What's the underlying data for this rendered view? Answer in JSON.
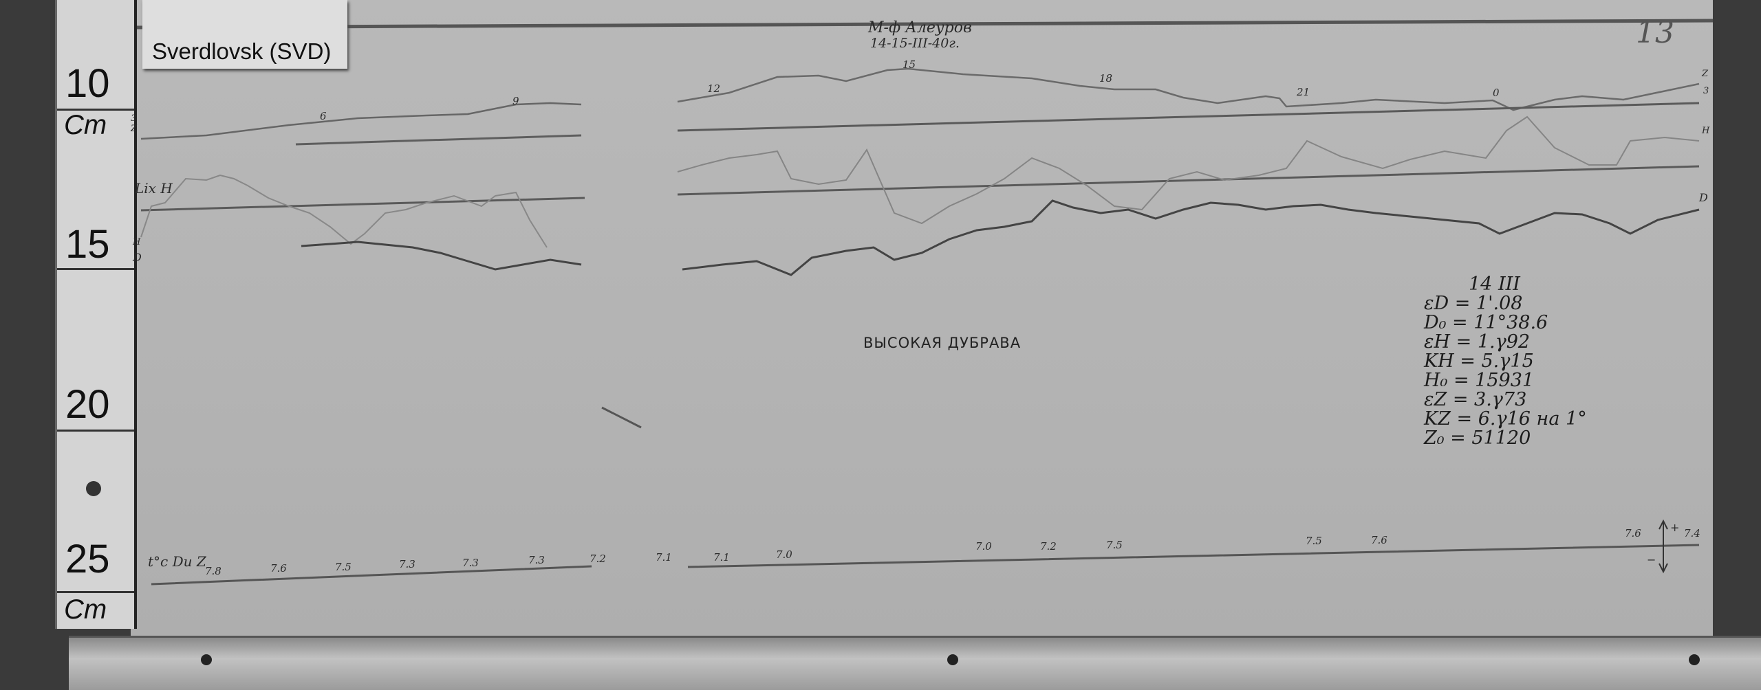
{
  "station_label": "Sverdlovsk (SVD)",
  "ruler": {
    "marks": [
      "10",
      "15",
      "20",
      "25"
    ],
    "unit_top": "Cm",
    "unit_bottom": "Cm"
  },
  "header": {
    "observer": "М-ф Алеуров",
    "date": "14-15-III-40г.",
    "sheet_number": "13"
  },
  "station_name": "ВЫСОКАЯ ДУБРАВА",
  "trace_labels": {
    "z": "Z",
    "z_base": "3",
    "h_left": "Lix H",
    "h_right": "H",
    "h_left_small": "H",
    "d_left": "D",
    "d_right": "D",
    "z_left": "3 Z"
  },
  "hour_labels": [
    "6",
    "9",
    "12",
    "15",
    "18",
    "21",
    "0"
  ],
  "temperature": {
    "label": "t°c Du Z",
    "values": [
      "7.8",
      "7.6",
      "7.5",
      "7.3",
      "7.3",
      "7.3",
      "7.2",
      "7.1",
      "7.1",
      "7.0",
      "7.0",
      "7.2",
      "7.5",
      "7.5",
      "7.6",
      "7.6",
      "7.4"
    ]
  },
  "polarity": {
    "plus": "+",
    "minus": "−"
  },
  "constants": {
    "day": "14 III",
    "lines": [
      "εD = 1'.08",
      "D₀ = 11°38.6",
      "εH = 1.γ92",
      "KH = 5.γ15",
      "H₀ = 15931",
      "εZ = 3.γ73",
      "KZ = 6.γ16 на 1°",
      "Z₀ = 51120"
    ]
  }
}
